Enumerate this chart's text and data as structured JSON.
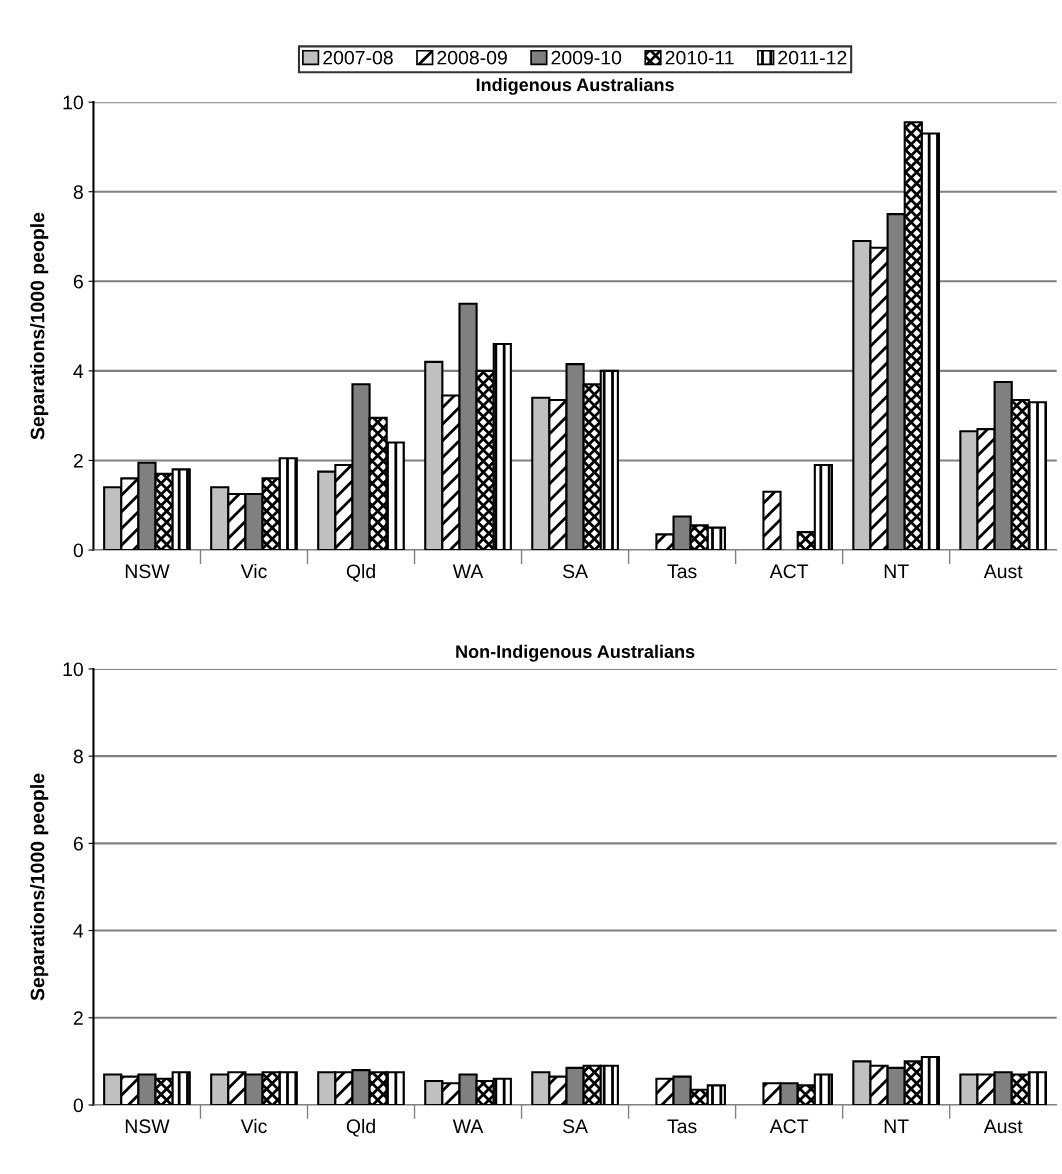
{
  "chart_data": [
    {
      "type": "bar",
      "title": "Indigenous Australians",
      "ylabel": "Separations/1000 people",
      "categories": [
        "NSW",
        "Vic",
        "Qld",
        "WA",
        "SA",
        "Tas",
        "ACT",
        "NT",
        "Aust"
      ],
      "series": [
        {
          "name": "2007-08",
          "color": "#c0c0c0",
          "values": [
            1.4,
            1.4,
            1.75,
            4.2,
            3.4,
            null,
            null,
            6.9,
            2.65
          ]
        },
        {
          "name": "2008-09",
          "color": "#ffffff",
          "values": [
            1.6,
            1.25,
            1.9,
            3.45,
            3.35,
            0.35,
            1.3,
            6.75,
            2.7
          ]
        },
        {
          "name": "2009-10",
          "color": "#808080",
          "values": [
            1.95,
            1.25,
            3.7,
            5.5,
            4.15,
            0.75,
            null,
            7.5,
            3.75
          ]
        },
        {
          "name": "2010-11",
          "color": "#ffffff",
          "values": [
            1.7,
            1.6,
            2.95,
            4.0,
            3.7,
            0.55,
            0.4,
            9.55,
            3.35
          ]
        },
        {
          "name": "2011-12",
          "color": "#ffffff",
          "values": [
            1.8,
            2.05,
            2.4,
            4.6,
            4.0,
            0.5,
            1.9,
            9.3,
            3.3
          ]
        }
      ],
      "ylim": [
        0,
        10
      ],
      "yticks": [
        0,
        2,
        4,
        6,
        8,
        10
      ],
      "grid": "y",
      "legend": "top"
    },
    {
      "type": "bar",
      "title": "Non-Indigenous Australians",
      "ylabel": "Separations/1000 people",
      "categories": [
        "NSW",
        "Vic",
        "Qld",
        "WA",
        "SA",
        "Tas",
        "ACT",
        "NT",
        "Aust"
      ],
      "series": [
        {
          "color": "#c0c0c0",
          "values": [
            0.7,
            0.7,
            0.75,
            0.55,
            0.75,
            null,
            null,
            1.0,
            0.7
          ]
        },
        {
          "color": "#ffffff",
          "values": [
            0.65,
            0.75,
            0.75,
            0.5,
            0.65,
            0.6,
            0.5,
            0.9,
            0.7
          ]
        },
        {
          "color": "#808080",
          "values": [
            0.7,
            0.7,
            0.8,
            0.7,
            0.85,
            0.65,
            0.5,
            0.85,
            0.75
          ]
        },
        {
          "color": "#ffffff",
          "values": [
            0.6,
            0.75,
            0.75,
            0.55,
            0.9,
            0.35,
            0.45,
            1.0,
            0.7
          ]
        },
        {
          "color": "#ffffff",
          "values": [
            0.75,
            0.75,
            0.75,
            0.6,
            0.9,
            0.45,
            0.7,
            1.1,
            0.75
          ]
        }
      ],
      "ylim": [
        0,
        10
      ],
      "yticks": [
        0,
        2,
        4,
        6,
        8,
        10
      ],
      "grid": "y"
    }
  ]
}
